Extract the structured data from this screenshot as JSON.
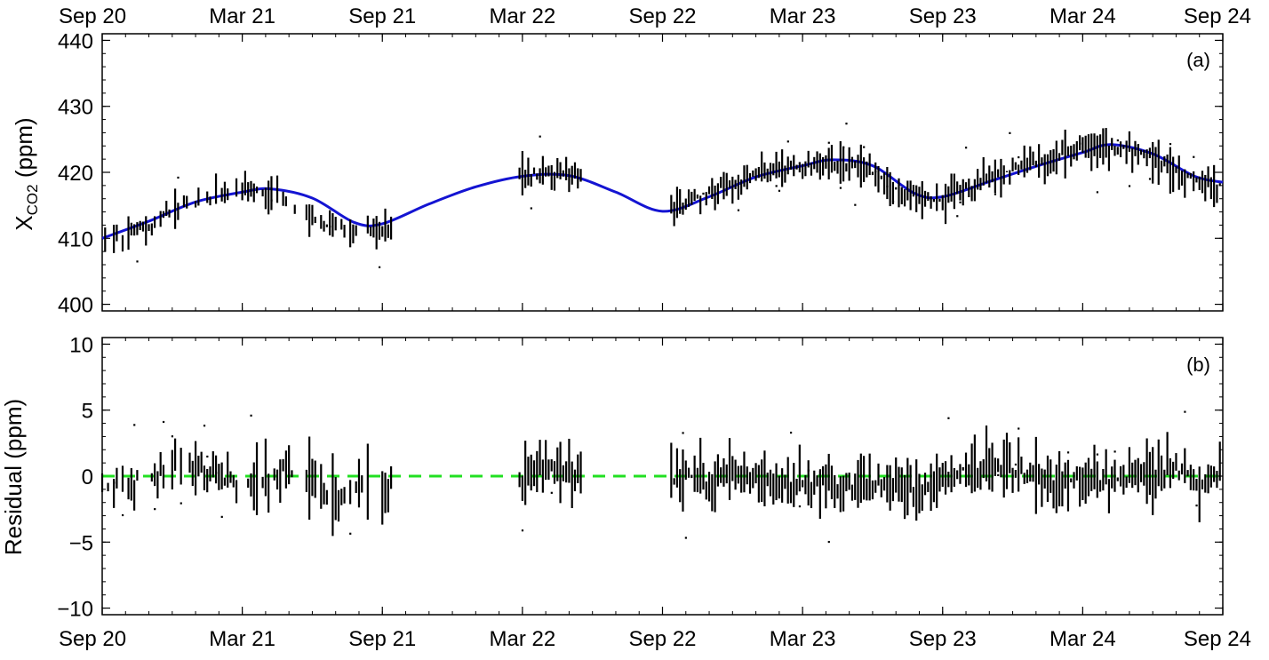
{
  "chart_data": [
    {
      "id": "a",
      "type": "scatter",
      "panel_label": "(a)",
      "ylabel_main": "X",
      "ylabel_sub": "CO2",
      "ylabel_unit": " (ppm)",
      "ylim": [
        399,
        441
      ],
      "yticks": [
        400,
        410,
        420,
        430,
        440
      ],
      "xlim": [
        0,
        48
      ],
      "xticks": [
        0,
        6,
        12,
        18,
        24,
        30,
        36,
        42,
        48
      ],
      "xticklabels": [
        "Sep 20",
        "Mar 21",
        "Sep 21",
        "Mar 22",
        "Sep 22",
        "Mar 23",
        "Sep 23",
        "Mar 24",
        "Sep 24"
      ],
      "xtick_position": "top",
      "grid": false,
      "series": [
        {
          "kind": "fit-curve",
          "color": "#1414d2",
          "x": [
            0,
            2,
            4,
            6,
            7.2,
            9,
            10.8,
            12,
            14,
            16,
            18,
            20,
            22,
            24,
            26,
            28,
            30,
            31.3,
            33,
            34.8,
            36,
            38,
            40,
            42,
            43.2,
            45,
            46.8,
            48
          ],
          "values": [
            410.0,
            412.6,
            415.5,
            417.0,
            417.5,
            416.1,
            412.4,
            412.2,
            415.2,
            417.8,
            419.4,
            419.5,
            417.0,
            414.1,
            416.3,
            419.3,
            421.0,
            421.9,
            421.0,
            416.8,
            416.3,
            418.6,
            420.9,
            423.0,
            424.2,
            422.8,
            419.4,
            418.5
          ]
        },
        {
          "kind": "observations",
          "color": "#000000",
          "x": [
            0,
            1,
            2,
            3,
            4,
            5,
            6,
            8,
            9,
            10,
            11,
            12,
            18,
            19,
            20,
            24,
            25,
            26,
            27,
            28,
            29,
            30,
            31,
            32,
            33,
            34,
            35,
            36,
            37,
            38,
            39,
            40,
            41,
            42,
            43,
            44,
            45,
            46,
            47,
            48
          ],
          "values": [
            409.5,
            410.5,
            412.0,
            414.0,
            415.5,
            416.5,
            417.5,
            415.5,
            413.0,
            411.5,
            411.0,
            411.5,
            419.5,
            420.0,
            420.0,
            414.5,
            415.5,
            417.0,
            418.5,
            419.5,
            420.5,
            421.0,
            421.5,
            421.0,
            420.0,
            417.5,
            416.0,
            415.5,
            417.5,
            419.0,
            420.5,
            421.5,
            422.5,
            423.5,
            424.0,
            423.5,
            422.0,
            420.0,
            418.5,
            418.0
          ]
        }
      ]
    },
    {
      "id": "b",
      "type": "scatter",
      "panel_label": "(b)",
      "ylabel": "Residual (ppm)",
      "ylim": [
        -10.5,
        10.5
      ],
      "yticks": [
        -10,
        -5,
        0,
        5,
        10
      ],
      "yticklabels": [
        "−10",
        "−5",
        "0",
        "5",
        "10"
      ],
      "xlim": [
        0,
        48
      ],
      "xticks": [
        0,
        6,
        12,
        18,
        24,
        30,
        36,
        42,
        48
      ],
      "xticklabels": [
        "Sep 20",
        "Mar 21",
        "Sep 21",
        "Mar 22",
        "Sep 22",
        "Mar 23",
        "Sep 23",
        "Mar 24",
        "Sep 24"
      ],
      "xtick_position": "bottom",
      "grid": false,
      "series": [
        {
          "kind": "zero-line",
          "color": "#22e022",
          "style": "dashed",
          "x": [
            0,
            48
          ],
          "values": [
            0,
            0
          ]
        },
        {
          "kind": "residuals",
          "color": "#000000",
          "x": [
            0,
            1,
            2,
            3,
            4,
            5,
            6,
            8,
            9,
            10,
            11,
            12,
            18,
            19,
            20,
            24,
            25,
            26,
            27,
            28,
            29,
            30,
            31,
            32,
            33,
            34,
            35,
            36,
            37,
            38,
            39,
            40,
            41,
            42,
            43,
            44,
            45,
            46,
            47,
            48
          ],
          "values": [
            -1.0,
            -0.5,
            0.0,
            0.5,
            0.5,
            0.0,
            -0.5,
            0.5,
            -0.5,
            -1.5,
            -0.5,
            -1.0,
            0.0,
            0.5,
            0.5,
            -0.5,
            0.0,
            -0.5,
            0.0,
            -0.5,
            -0.5,
            -0.5,
            -0.5,
            -1.0,
            -0.5,
            -1.0,
            -1.0,
            0.0,
            0.5,
            0.5,
            0.5,
            0.0,
            -0.5,
            0.0,
            -0.5,
            0.0,
            0.0,
            0.5,
            -0.5,
            0.0
          ]
        }
      ]
    }
  ]
}
